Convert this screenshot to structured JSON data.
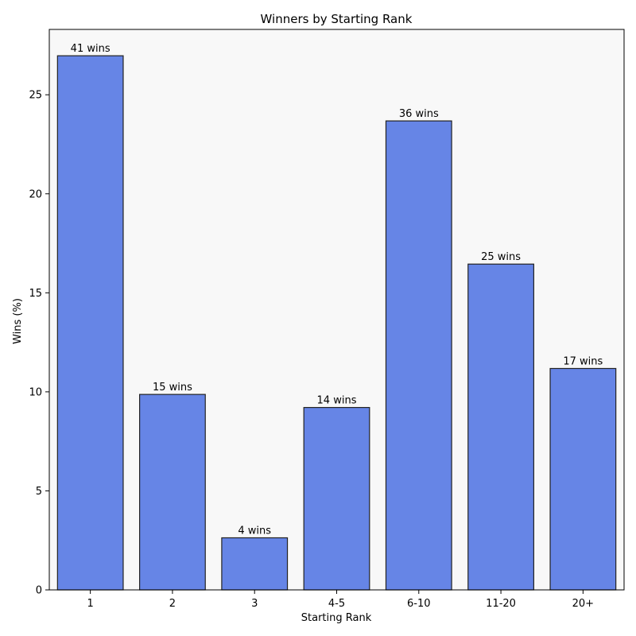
{
  "chart_data": {
    "type": "bar",
    "title": "Winners by Starting Rank",
    "xlabel": "Starting Rank",
    "ylabel": "Wins (%)",
    "categories": [
      "1",
      "2",
      "3",
      "4-5",
      "6-10",
      "11-20",
      "20+"
    ],
    "values": [
      26.97,
      9.87,
      2.63,
      9.21,
      23.68,
      16.45,
      11.18
    ],
    "data_labels": [
      "41 wins",
      "15 wins",
      "4 wins",
      "14 wins",
      "36 wins",
      "25 wins",
      "17 wins"
    ],
    "ylim": [
      0,
      28.3
    ],
    "yticks": [
      0,
      5,
      10,
      15,
      20,
      25
    ],
    "grid": false,
    "legend": "none",
    "colors": {
      "bar_fill": "#6685e6",
      "bar_edge": "#222222",
      "plot_background": "#f8f8f8",
      "page_background": "#ffffff"
    }
  }
}
